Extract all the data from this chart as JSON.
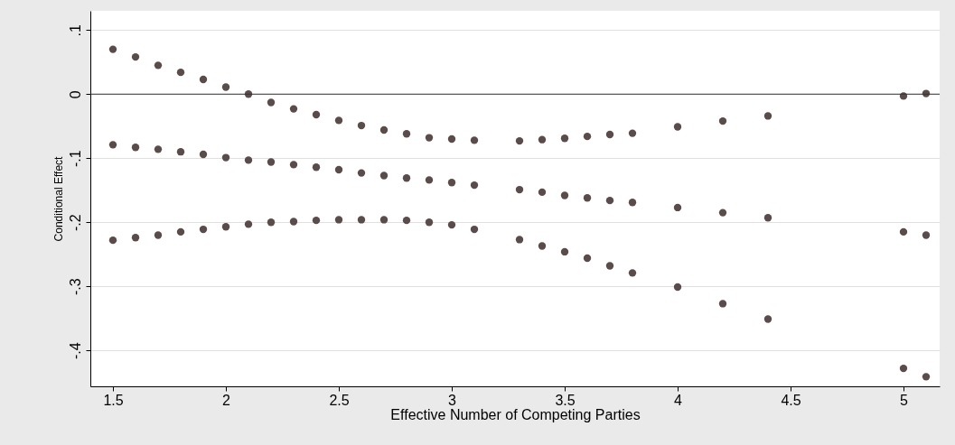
{
  "chart_data": {
    "type": "scatter",
    "xlabel": "Effective Number of Competing Parties",
    "ylabel": "Conditional Effect",
    "x": [
      1.5,
      1.6,
      1.7,
      1.8,
      1.9,
      2.0,
      2.1,
      2.2,
      2.3,
      2.4,
      2.5,
      2.6,
      2.7,
      2.8,
      2.9,
      3.0,
      3.1,
      3.3,
      3.4,
      3.5,
      3.6,
      3.7,
      3.8,
      4.0,
      4.2,
      4.4,
      5.0,
      5.1
    ],
    "series": [
      {
        "color": "#5b4c4c",
        "values": [
          0.07,
          0.058,
          0.045,
          0.034,
          0.023,
          0.011,
          0,
          -0.013,
          -0.023,
          -0.032,
          -0.041,
          -0.049,
          -0.056,
          -0.062,
          -0.068,
          -0.07,
          -0.072,
          -0.073,
          -0.071,
          -0.069,
          -0.066,
          -0.063,
          -0.061,
          -0.051,
          -0.042,
          -0.034,
          -0.003,
          0.001
        ]
      },
      {
        "color": "#5b4c4c",
        "values": [
          -0.079,
          -0.083,
          -0.086,
          -0.09,
          -0.094,
          -0.099,
          -0.103,
          -0.106,
          -0.11,
          -0.114,
          -0.118,
          -0.123,
          -0.127,
          -0.131,
          -0.134,
          -0.138,
          -0.142,
          -0.149,
          -0.153,
          -0.158,
          -0.162,
          -0.166,
          -0.169,
          -0.177,
          -0.185,
          -0.193,
          -0.215,
          -0.22
        ]
      },
      {
        "color": "#5b4c4c",
        "values": [
          -0.228,
          -0.224,
          -0.22,
          -0.215,
          -0.211,
          -0.207,
          -0.203,
          -0.2,
          -0.199,
          -0.197,
          -0.196,
          -0.196,
          -0.196,
          -0.197,
          -0.2,
          -0.204,
          -0.211,
          -0.227,
          -0.237,
          -0.246,
          -0.256,
          -0.268,
          -0.279,
          -0.301,
          -0.327,
          -0.351,
          -0.428,
          -0.441
        ]
      }
    ],
    "xlim": [
      1.4,
      5.16
    ],
    "xticks": [
      1.5,
      2,
      2.5,
      3,
      3.5,
      4,
      4.5,
      5
    ],
    "ylim": [
      -0.456,
      0.13
    ],
    "yticks": [
      {
        "value": 0.1,
        "label": ".1"
      },
      0,
      {
        "value": -0.1,
        "label": "-.1"
      },
      {
        "value": -0.2,
        "label": "-.2"
      },
      {
        "value": -0.3,
        "label": "-.3"
      },
      {
        "value": -0.4,
        "label": "-.4"
      }
    ],
    "grid": "y",
    "marker": "circle",
    "ref_lines": [
      {
        "axis": "y",
        "value": 0,
        "color": "#333333"
      }
    ]
  }
}
